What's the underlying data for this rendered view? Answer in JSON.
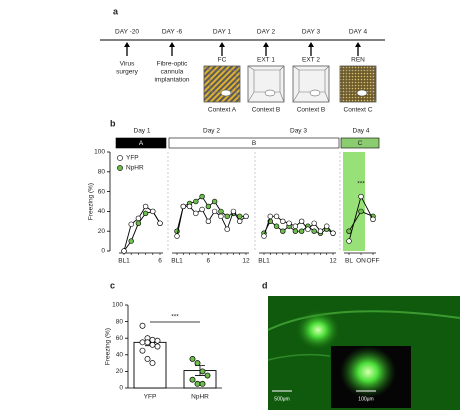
{
  "panel_labels": [
    "a",
    "b",
    "c",
    "d"
  ],
  "timeline": {
    "events": [
      {
        "day": "DAY -20",
        "lines": [
          "Virus",
          "surgery"
        ]
      },
      {
        "day": "DAY -6",
        "lines": [
          "Fibre-optic",
          "cannula",
          "implantation"
        ]
      },
      {
        "day": "DAY 1",
        "lines": [
          "FC"
        ],
        "context": "Context A"
      },
      {
        "day": "DAY 2",
        "lines": [
          "EXT 1"
        ],
        "context": "Context B"
      },
      {
        "day": "DAY 3",
        "lines": [
          "EXT 2"
        ],
        "context": "Context B"
      },
      {
        "day": "DAY 4",
        "lines": [
          "REN"
        ],
        "context": "Context C"
      }
    ]
  },
  "chart_data": [
    {
      "type": "line",
      "ylabel": "Freezing (%)",
      "ylim": [
        0,
        100
      ],
      "yticks": [
        0,
        20,
        40,
        60,
        80,
        100
      ],
      "series": [
        {
          "name": "YFP",
          "color": "#ffffff"
        },
        {
          "name": "NpHR",
          "color": "#6cbf4a"
        }
      ],
      "contexts": [
        {
          "label": "A",
          "color": "#000000",
          "sessions": [
            {
              "day": "Day 1",
              "categories": [
                "BL1",
                null,
                null,
                null,
                null,
                "6"
              ],
              "series": [
                {
                  "values": [
                    0,
                    27,
                    33,
                    45,
                    40,
                    28
                  ]
                },
                {
                  "values": [
                    0,
                    10,
                    28,
                    38,
                    40,
                    28
                  ]
                }
              ]
            }
          ]
        },
        {
          "label": "B",
          "color": "#ffffff",
          "sessions": [
            {
              "day": "Day 2",
              "categories": [
                "BL1",
                null,
                null,
                null,
                null,
                "6",
                null,
                null,
                null,
                null,
                null,
                "12"
              ],
              "series": [
                {
                  "values": [
                    15,
                    45,
                    45,
                    38,
                    42,
                    30,
                    40,
                    35,
                    22,
                    40,
                    30,
                    35
                  ]
                },
                {
                  "values": [
                    20,
                    45,
                    48,
                    50,
                    55,
                    45,
                    50,
                    40,
                    35,
                    38,
                    35,
                    35
                  ]
                }
              ]
            },
            {
              "day": "Day 3",
              "categories": [
                "BL1",
                null,
                null,
                null,
                null,
                null,
                null,
                null,
                null,
                null,
                null,
                "12"
              ],
              "series": [
                {
                  "values": [
                    15,
                    35,
                    35,
                    30,
                    28,
                    25,
                    30,
                    22,
                    28,
                    20,
                    25,
                    18
                  ]
                },
                {
                  "values": [
                    18,
                    30,
                    25,
                    20,
                    25,
                    20,
                    20,
                    25,
                    20,
                    18,
                    22,
                    18
                  ]
                }
              ]
            }
          ]
        },
        {
          "label": "C",
          "color": "#8ccc70",
          "sessions": [
            {
              "day": "Day 4",
              "categories": [
                "BL",
                "ON",
                "OFF"
              ],
              "annotation": "***",
              "shade_color": "#7ed957",
              "series": [
                {
                  "values": [
                    10,
                    55,
                    32
                  ]
                },
                {
                  "values": [
                    20,
                    40,
                    35
                  ]
                }
              ]
            }
          ]
        }
      ]
    },
    {
      "type": "bar",
      "ylabel": "Freezing (%)",
      "ylim": [
        0,
        100
      ],
      "yticks": [
        0,
        20,
        40,
        60,
        80,
        100
      ],
      "categories": [
        "YFP",
        "NpHR"
      ],
      "values": [
        55,
        21
      ],
      "errors": [
        4,
        6
      ],
      "color": "#ffffff",
      "point_colors": [
        "#ffffff",
        "#6cbf4a"
      ],
      "annotation": "***",
      "points": [
        [
          75,
          60,
          58,
          57,
          55,
          55,
          52,
          50,
          45,
          35,
          30
        ],
        [
          35,
          30,
          20,
          15,
          10,
          5,
          5
        ]
      ]
    }
  ],
  "image": {
    "scale_bars": [
      "500μm",
      "100μm"
    ]
  }
}
